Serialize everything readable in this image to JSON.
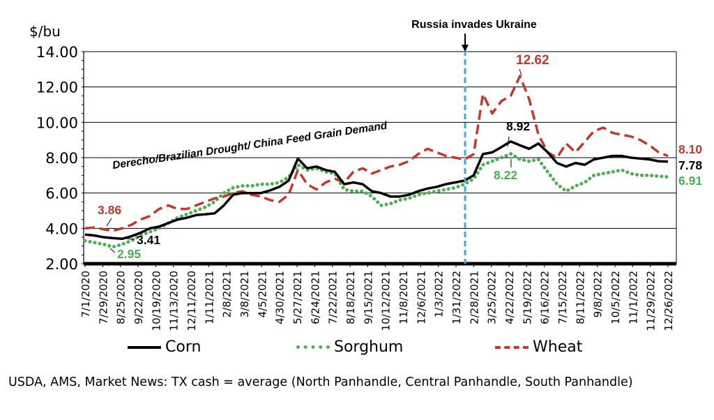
{
  "chart_data": {
    "type": "line",
    "ylabel": "$/bu",
    "ylim": [
      2,
      14
    ],
    "yticks": [
      "2.00",
      "4.00",
      "6.00",
      "8.00",
      "10.00",
      "12.00",
      "14.00"
    ],
    "grid": "horizontal",
    "legend_position": "bottom",
    "x_tick_labels": [
      "7/1/2020",
      "7/29/2020",
      "8/25/2020",
      "9/22/2020",
      "10/19/2020",
      "11/13/2020",
      "12/11/2020",
      "1/11/2021",
      "2/8/2021",
      "3/8/2021",
      "4/5/2021",
      "4/30/2021",
      "5/27/2021",
      "6/24/2021",
      "7/22/2021",
      "8/18/2021",
      "9/15/2021",
      "10/12/2021",
      "11/8/2021",
      "12/6/2021",
      "1/3/2022",
      "1/31/2022",
      "2/28/2021",
      "3/25/2022",
      "4/22/2022",
      "5/19/2022",
      "6/16/2022",
      "7/15/2022",
      "8/11/2022",
      "9/8/2022",
      "10/5/2022",
      "11/1/2022",
      "11/29/2022",
      "12/26/2022"
    ],
    "series": [
      {
        "name": "Corn",
        "color": "#000000",
        "style": "solid",
        "values": [
          3.65,
          3.6,
          3.5,
          3.45,
          3.41,
          3.55,
          3.75,
          4.0,
          4.1,
          4.3,
          4.5,
          4.6,
          4.75,
          4.8,
          4.85,
          5.3,
          5.9,
          6.0,
          6.0,
          6.0,
          6.15,
          6.35,
          6.7,
          7.95,
          7.4,
          7.5,
          7.3,
          7.2,
          6.5,
          6.6,
          6.5,
          6.1,
          6.0,
          5.8,
          5.8,
          5.9,
          6.1,
          6.25,
          6.35,
          6.5,
          6.6,
          6.7,
          7.0,
          8.2,
          8.3,
          8.6,
          8.92,
          8.7,
          8.5,
          8.8,
          8.3,
          7.7,
          7.5,
          7.7,
          7.6,
          7.9,
          8.0,
          8.1,
          8.1,
          8.0,
          7.95,
          7.9,
          7.8,
          7.78
        ]
      },
      {
        "name": "Sorghum",
        "color": "#4CAF50",
        "style": "dotted",
        "values": [
          3.3,
          3.2,
          3.1,
          2.95,
          3.1,
          3.3,
          3.6,
          3.8,
          4.0,
          4.3,
          4.6,
          4.8,
          5.0,
          5.2,
          5.5,
          6.0,
          6.3,
          6.4,
          6.4,
          6.5,
          6.5,
          6.6,
          6.9,
          7.6,
          7.3,
          7.4,
          7.2,
          7.1,
          6.2,
          6.1,
          6.1,
          5.8,
          5.3,
          5.4,
          5.6,
          5.7,
          5.9,
          6.0,
          6.1,
          6.2,
          6.3,
          6.5,
          6.8,
          7.6,
          7.8,
          8.0,
          8.22,
          7.9,
          7.8,
          7.9,
          7.2,
          6.5,
          6.1,
          6.4,
          6.6,
          7.0,
          7.1,
          7.2,
          7.3,
          7.1,
          7.0,
          7.0,
          6.95,
          6.91
        ]
      },
      {
        "name": "Wheat",
        "color": "#C0392B",
        "style": "dashed",
        "values": [
          4.0,
          4.05,
          3.95,
          3.86,
          4.0,
          4.2,
          4.5,
          4.7,
          5.1,
          5.3,
          5.1,
          5.1,
          5.3,
          5.5,
          5.7,
          5.8,
          6.0,
          6.1,
          5.9,
          5.8,
          5.6,
          5.5,
          5.9,
          7.3,
          6.5,
          6.2,
          6.6,
          6.8,
          6.6,
          7.2,
          7.4,
          7.1,
          7.3,
          7.5,
          7.6,
          7.8,
          8.2,
          8.5,
          8.3,
          8.1,
          8.0,
          7.9,
          8.2,
          11.6,
          10.5,
          11.2,
          11.5,
          12.62,
          11.3,
          9.3,
          8.3,
          8.0,
          8.8,
          8.3,
          8.9,
          9.5,
          9.7,
          9.4,
          9.3,
          9.2,
          9.0,
          8.7,
          8.3,
          8.1
        ]
      }
    ],
    "annotations": {
      "event_line_label": "Russia invades Ukraine",
      "curve_label": "Derecho/Brazilian Drought/ China Feed Grain Demand",
      "points": [
        {
          "text": "3.86",
          "color": "#C0392B",
          "series": "Wheat"
        },
        {
          "text": "3.41",
          "color": "#000000",
          "series": "Corn"
        },
        {
          "text": "2.95",
          "color": "#4CAF50",
          "series": "Sorghum"
        },
        {
          "text": "12.62",
          "color": "#C0392B",
          "series": "Wheat"
        },
        {
          "text": "8.92",
          "color": "#000000",
          "series": "Corn"
        },
        {
          "text": "8.22",
          "color": "#4CAF50",
          "series": "Sorghum"
        },
        {
          "text": "8.10",
          "color": "#C0392B",
          "series": "Wheat"
        },
        {
          "text": "7.78",
          "color": "#000000",
          "series": "Corn"
        },
        {
          "text": "6.91",
          "color": "#4CAF50",
          "series": "Sorghum"
        }
      ]
    }
  },
  "legend": {
    "corn": "Corn",
    "sorghum": "Sorghum",
    "wheat": "Wheat"
  },
  "source": "USDA, AMS, Market News: TX cash = average (North Panhandle, Central Panhandle, South Panhandle)"
}
